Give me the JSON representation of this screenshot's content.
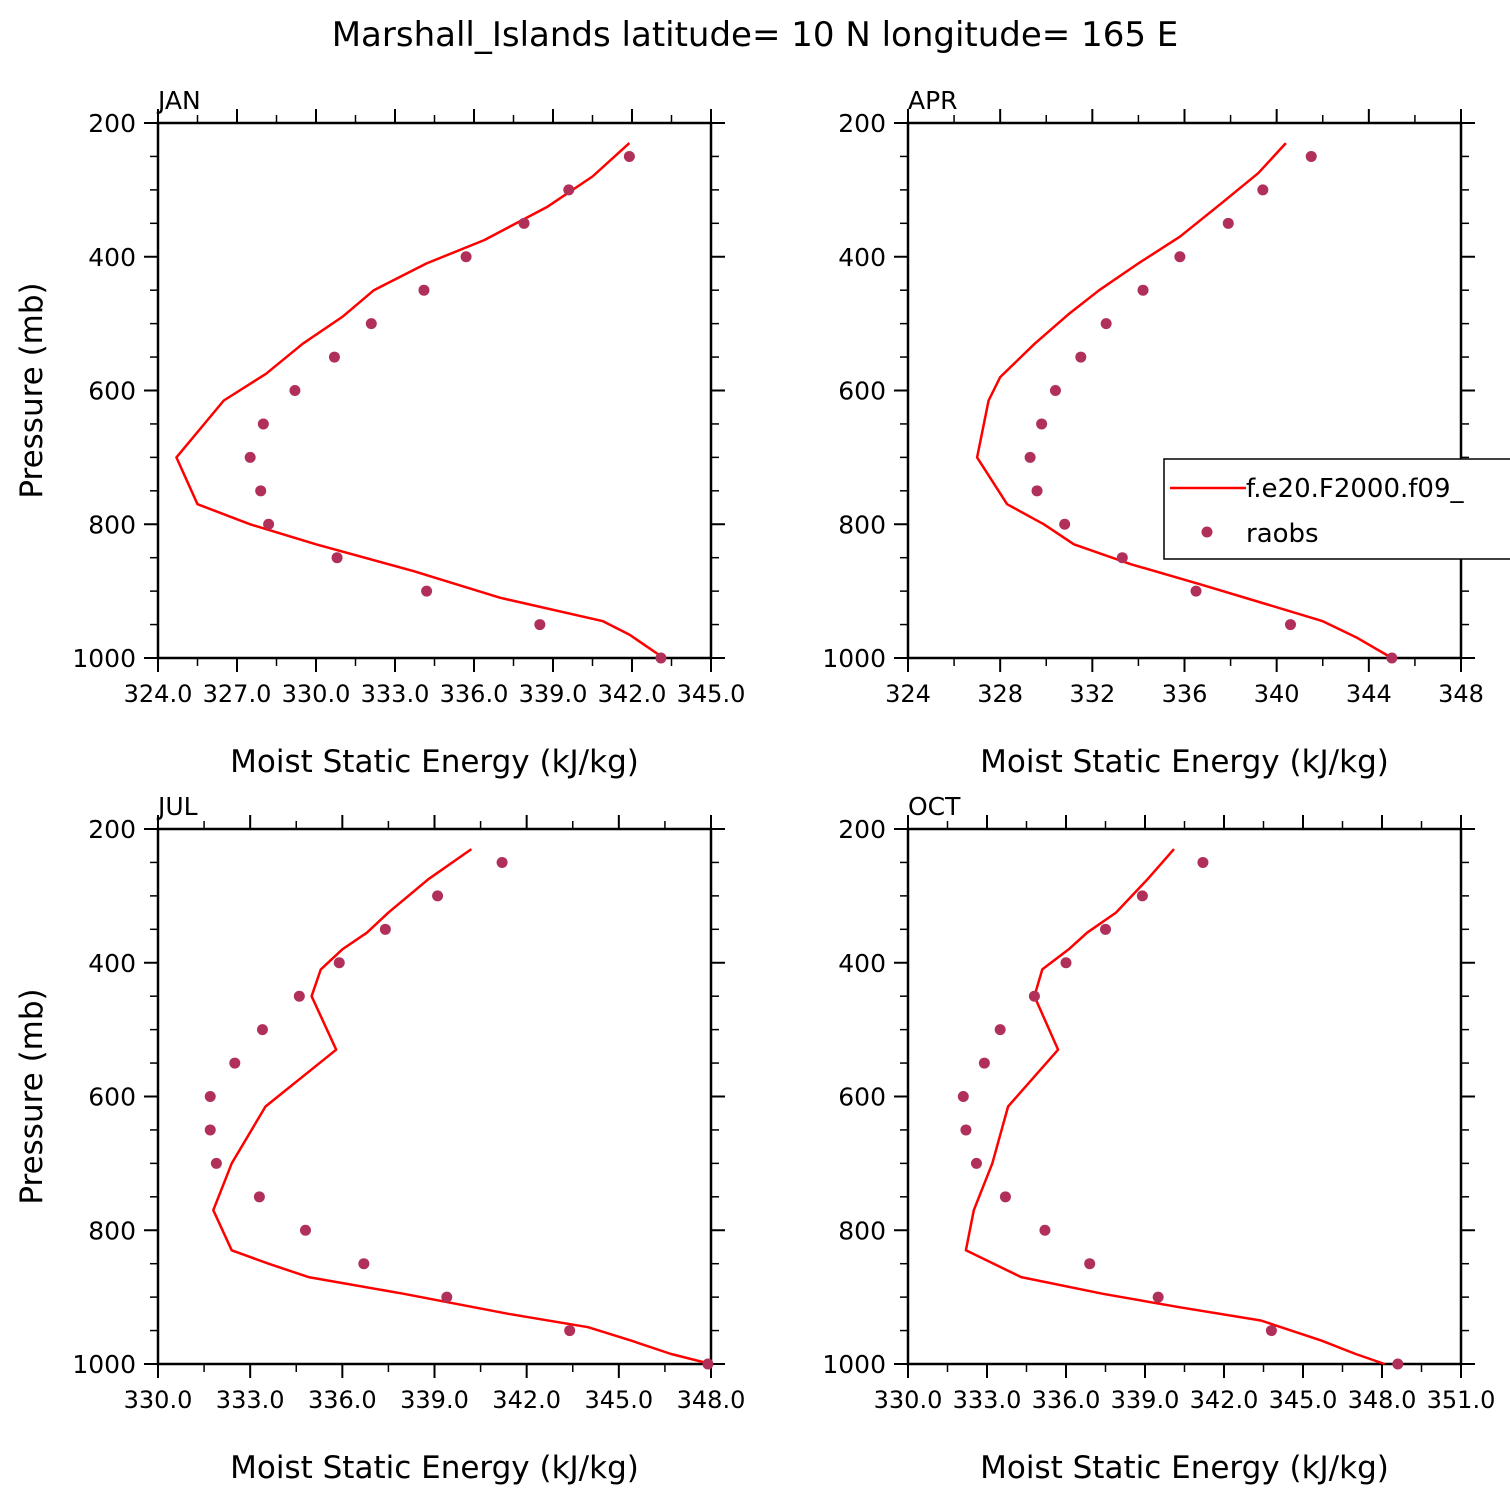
{
  "figure": {
    "title": "Marshall_Islands  latitude= 10 N longitude= 165 E",
    "legend": {
      "model_label": "f.e20.F2000.f09_",
      "obs_label": "raobs"
    },
    "colors": {
      "model": "#ff0000",
      "obs": "#b0305a",
      "axis": "#000000"
    }
  },
  "chart_data": [
    {
      "type": "line",
      "panel": "JAN",
      "title": "JAN",
      "xlabel": "Moist Static Energy (kJ/kg)",
      "ylabel": "Pressure (mb)",
      "xlim": [
        324,
        345
      ],
      "ylim": [
        200,
        1000
      ],
      "y_inverted": true,
      "xticks": [
        "324.0",
        "327.0",
        "330.0",
        "333.0",
        "336.0",
        "339.0",
        "342.0",
        "345.0"
      ],
      "xtick_values": [
        324,
        327,
        330,
        333,
        336,
        339,
        342,
        345
      ],
      "yticks": [
        200,
        400,
        600,
        800,
        1000
      ],
      "legend_visible": false,
      "series": [
        {
          "kind": "line",
          "points": [
            [
              341.9,
              230
            ],
            [
              340.5,
              280
            ],
            [
              338.8,
              325
            ],
            [
              336.4,
              375
            ],
            [
              334.2,
              410
            ],
            [
              332.2,
              450
            ],
            [
              331,
              490
            ],
            [
              329.5,
              530
            ],
            [
              328.1,
              575
            ],
            [
              326.5,
              615
            ],
            [
              324.7,
              700
            ],
            [
              325.5,
              770
            ],
            [
              327.5,
              800
            ],
            [
              330,
              830
            ],
            [
              333.7,
              870
            ],
            [
              337,
              910
            ],
            [
              340.9,
              945
            ],
            [
              341.9,
              965
            ],
            [
              343.2,
              1000
            ]
          ]
        },
        {
          "kind": "scatter",
          "points": [
            [
              341.9,
              250
            ],
            [
              339.6,
              300
            ],
            [
              337.9,
              350
            ],
            [
              335.7,
              400
            ],
            [
              334.1,
              450
            ],
            [
              332.1,
              500
            ],
            [
              330.7,
              550
            ],
            [
              329.2,
              600
            ],
            [
              328,
              650
            ],
            [
              327.5,
              700
            ],
            [
              327.9,
              750
            ],
            [
              328.2,
              800
            ],
            [
              330.8,
              850
            ],
            [
              334.2,
              900
            ],
            [
              338.5,
              950
            ],
            [
              343.1,
              1000
            ]
          ]
        }
      ]
    },
    {
      "type": "line",
      "panel": "APR",
      "title": "APR",
      "xlabel": "Moist Static Energy (kJ/kg)",
      "ylabel": "",
      "xlim": [
        324,
        348
      ],
      "ylim": [
        200,
        1000
      ],
      "y_inverted": true,
      "xticks": [
        "324",
        "328",
        "332",
        "336",
        "340",
        "344",
        "348"
      ],
      "xtick_values": [
        324,
        328,
        332,
        336,
        340,
        344,
        348
      ],
      "yticks": [
        200,
        400,
        600,
        800,
        1000
      ],
      "legend_visible": true,
      "legend_position": "right",
      "series": [
        {
          "kind": "line",
          "points": [
            [
              340.4,
              230
            ],
            [
              339.2,
              275
            ],
            [
              337.6,
              320
            ],
            [
              335.8,
              370
            ],
            [
              334,
              410
            ],
            [
              332.3,
              450
            ],
            [
              331,
              485
            ],
            [
              329.5,
              530
            ],
            [
              328,
              580
            ],
            [
              327.5,
              615
            ],
            [
              327,
              700
            ],
            [
              328.3,
              770
            ],
            [
              329.9,
              800
            ],
            [
              331.2,
              830
            ],
            [
              333.7,
              860
            ],
            [
              336.7,
              890
            ],
            [
              339.6,
              920
            ],
            [
              342,
              945
            ],
            [
              343.5,
              970
            ],
            [
              345,
              1000
            ]
          ]
        },
        {
          "kind": "scatter",
          "points": [
            [
              341.5,
              250
            ],
            [
              339.4,
              300
            ],
            [
              337.9,
              350
            ],
            [
              335.8,
              400
            ],
            [
              334.2,
              450
            ],
            [
              332.6,
              500
            ],
            [
              331.5,
              550
            ],
            [
              330.4,
              600
            ],
            [
              329.8,
              650
            ],
            [
              329.3,
              700
            ],
            [
              329.6,
              750
            ],
            [
              330.8,
              800
            ],
            [
              333.3,
              850
            ],
            [
              336.5,
              900
            ],
            [
              340.6,
              950
            ],
            [
              345,
              1000
            ]
          ]
        }
      ]
    },
    {
      "type": "line",
      "panel": "JUL",
      "title": "JUL",
      "xlabel": "Moist Static Energy (kJ/kg)",
      "ylabel": "Pressure (mb)",
      "xlim": [
        330,
        348
      ],
      "ylim": [
        200,
        1000
      ],
      "y_inverted": true,
      "xticks": [
        "330.0",
        "333.0",
        "336.0",
        "339.0",
        "342.0",
        "345.0",
        "348.0"
      ],
      "xtick_values": [
        330,
        333,
        336,
        339,
        342,
        345,
        348
      ],
      "yticks": [
        200,
        400,
        600,
        800,
        1000
      ],
      "legend_visible": false,
      "series": [
        {
          "kind": "line",
          "points": [
            [
              340.2,
              230
            ],
            [
              338.8,
              275
            ],
            [
              337.5,
              325
            ],
            [
              336.8,
              355
            ],
            [
              336,
              380
            ],
            [
              335.3,
              410
            ],
            [
              335,
              450
            ],
            [
              335.8,
              530
            ],
            [
              333.5,
              615
            ],
            [
              332.4,
              700
            ],
            [
              331.8,
              770
            ],
            [
              332.4,
              830
            ],
            [
              333.6,
              850
            ],
            [
              334.9,
              870
            ],
            [
              338,
              895
            ],
            [
              341.4,
              925
            ],
            [
              344,
              945
            ],
            [
              345.4,
              965
            ],
            [
              346.7,
              985
            ],
            [
              348,
              1000
            ]
          ]
        },
        {
          "kind": "scatter",
          "points": [
            [
              341.2,
              250
            ],
            [
              339.1,
              300
            ],
            [
              337.4,
              350
            ],
            [
              335.9,
              400
            ],
            [
              334.6,
              450
            ],
            [
              333.4,
              500
            ],
            [
              332.5,
              550
            ],
            [
              331.7,
              600
            ],
            [
              331.7,
              650
            ],
            [
              331.9,
              700
            ],
            [
              333.3,
              750
            ],
            [
              334.8,
              800
            ],
            [
              336.7,
              850
            ],
            [
              339.4,
              900
            ],
            [
              343.4,
              950
            ],
            [
              347.9,
              1000
            ]
          ]
        }
      ]
    },
    {
      "type": "line",
      "panel": "OCT",
      "title": "OCT",
      "xlabel": "Moist Static Energy (kJ/kg)",
      "ylabel": "",
      "xlim": [
        330,
        351
      ],
      "ylim": [
        200,
        1000
      ],
      "y_inverted": true,
      "xticks": [
        "330.0",
        "333.0",
        "336.0",
        "339.0",
        "342.0",
        "345.0",
        "348.0",
        "351.0"
      ],
      "xtick_values": [
        330,
        333,
        336,
        339,
        342,
        345,
        348,
        351
      ],
      "yticks": [
        200,
        400,
        600,
        800,
        1000
      ],
      "legend_visible": false,
      "series": [
        {
          "kind": "line",
          "points": [
            [
              340.1,
              230
            ],
            [
              339.1,
              275
            ],
            [
              337.9,
              325
            ],
            [
              336.8,
              355
            ],
            [
              336.1,
              380
            ],
            [
              335.1,
              410
            ],
            [
              334.8,
              450
            ],
            [
              335.7,
              530
            ],
            [
              333.8,
              615
            ],
            [
              333.2,
              700
            ],
            [
              332.5,
              770
            ],
            [
              332.2,
              830
            ],
            [
              334.3,
              870
            ],
            [
              337.4,
              895
            ],
            [
              340.3,
              915
            ],
            [
              343.4,
              935
            ],
            [
              345.7,
              965
            ],
            [
              347,
              985
            ],
            [
              348.1,
              1000
            ]
          ]
        },
        {
          "kind": "scatter",
          "points": [
            [
              341.2,
              250
            ],
            [
              338.9,
              300
            ],
            [
              337.5,
              350
            ],
            [
              336,
              400
            ],
            [
              334.8,
              450
            ],
            [
              333.5,
              500
            ],
            [
              332.9,
              550
            ],
            [
              332.1,
              600
            ],
            [
              332.2,
              650
            ],
            [
              332.6,
              700
            ],
            [
              333.7,
              750
            ],
            [
              335.2,
              800
            ],
            [
              336.9,
              850
            ],
            [
              339.5,
              900
            ],
            [
              343.8,
              950
            ],
            [
              348.6,
              1000
            ]
          ]
        }
      ]
    }
  ]
}
